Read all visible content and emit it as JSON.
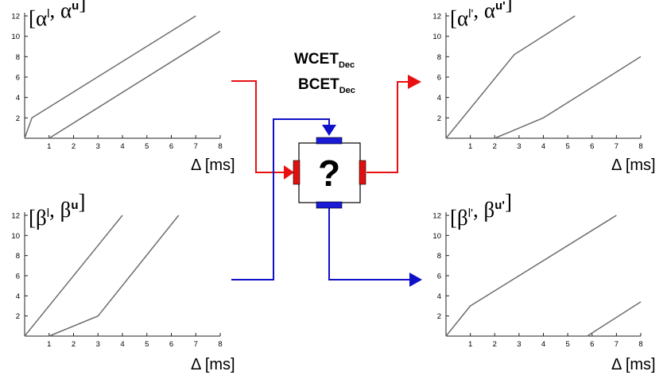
{
  "diagram": {
    "task_labels": {
      "wcet_main": "WCET",
      "wcet_sub": "Dec",
      "bcet_main": "BCET",
      "bcet_sub": "Dec"
    },
    "task_symbol": "?",
    "colors": {
      "event_flow": "#e81010",
      "resource_flow": "#1010c8",
      "port_red": "#e01010",
      "port_blue": "#1a1ad6",
      "curve": "#6e6e6e"
    }
  },
  "plots": [
    {
      "id": "alpha-in",
      "title": {
        "open": "[",
        "sym1": "α",
        "sup1": "l",
        "comma": ", ",
        "sym2": "α",
        "sup2": "u",
        "close": "]"
      },
      "xlabel": "Δ [ms]",
      "xticks": [
        "1",
        "2",
        "3",
        "4",
        "5",
        "6",
        "7",
        "8"
      ],
      "yticks": [
        "2",
        "4",
        "6",
        "8",
        "10",
        "12"
      ],
      "xlim": [
        0,
        8
      ],
      "ylim": [
        0,
        12
      ],
      "series": [
        {
          "points": [
            [
              0,
              0
            ],
            [
              0.3,
              2
            ],
            [
              7,
              12
            ]
          ]
        },
        {
          "points": [
            [
              1,
              0
            ],
            [
              8,
              10.5
            ]
          ]
        }
      ]
    },
    {
      "id": "alpha-out",
      "title": {
        "open": "[",
        "sym1": "α",
        "sup1": "l'",
        "comma": ", ",
        "sym2": "α",
        "sup2": "u'",
        "close": "]"
      },
      "xlabel": "Δ [ms]",
      "xticks": [
        "1",
        "2",
        "3",
        "4",
        "5",
        "6",
        "7",
        "8"
      ],
      "yticks": [
        "2",
        "4",
        "6",
        "8",
        "10",
        "12"
      ],
      "xlim": [
        0,
        8
      ],
      "ylim": [
        0,
        12
      ],
      "series": [
        {
          "points": [
            [
              0,
              0
            ],
            [
              2.8,
              8.2
            ],
            [
              5.3,
              12
            ]
          ]
        },
        {
          "points": [
            [
              2,
              0
            ],
            [
              4,
              2
            ],
            [
              8,
              8
            ]
          ]
        }
      ]
    },
    {
      "id": "beta-in",
      "title": {
        "open": "[",
        "sym1": "β",
        "sup1": "l",
        "comma": ", ",
        "sym2": "β",
        "sup2": "u",
        "close": "]"
      },
      "xlabel": "Δ [ms]",
      "xticks": [
        "1",
        "2",
        "3",
        "4",
        "5",
        "6",
        "7",
        "8"
      ],
      "yticks": [
        "2",
        "4",
        "6",
        "8",
        "10",
        "12"
      ],
      "xlim": [
        0,
        8
      ],
      "ylim": [
        0,
        12
      ],
      "series": [
        {
          "points": [
            [
              0,
              0
            ],
            [
              4,
              12
            ]
          ]
        },
        {
          "points": [
            [
              1,
              0
            ],
            [
              3,
              2
            ],
            [
              6.3,
              12
            ]
          ]
        }
      ]
    },
    {
      "id": "beta-out",
      "title": {
        "open": "[",
        "sym1": "β",
        "sup1": "l'",
        "comma": ", ",
        "sym2": "β",
        "sup2": "u'",
        "close": "]"
      },
      "xlabel": "Δ [ms]",
      "xticks": [
        "1",
        "2",
        "3",
        "4",
        "5",
        "6",
        "7",
        "8"
      ],
      "yticks": [
        "2",
        "4",
        "6",
        "8",
        "10",
        "12"
      ],
      "xlim": [
        0,
        8
      ],
      "ylim": [
        0,
        12
      ],
      "series": [
        {
          "points": [
            [
              0,
              0
            ],
            [
              1,
              3
            ],
            [
              7,
              12
            ]
          ]
        },
        {
          "points": [
            [
              5.8,
              0
            ],
            [
              8,
              3.4
            ]
          ]
        }
      ]
    }
  ]
}
